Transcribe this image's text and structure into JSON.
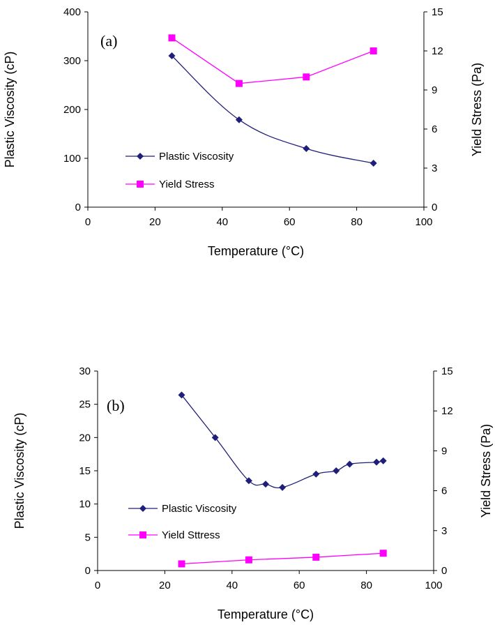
{
  "colors": {
    "viscosity": "#1f1f7a",
    "yield": "#ff00ff",
    "axis": "#000000"
  },
  "chart_data": [
    {
      "type": "line",
      "panel_label": "(a)",
      "xlabel": "Temperature (°C)",
      "ylabel": "Plastic Viscosity (cP)",
      "y2label": "Yield Stress (Pa)",
      "xlim": [
        0,
        100
      ],
      "ylim": [
        0,
        400
      ],
      "y2lim": [
        0,
        15
      ],
      "xticks": [
        0,
        20,
        40,
        60,
        80,
        100
      ],
      "yticks": [
        0,
        100,
        200,
        300,
        400
      ],
      "y2ticks": [
        0,
        3,
        6,
        9,
        12,
        15
      ],
      "grid": false,
      "legend_position": "lower-left",
      "series": [
        {
          "name": "Plastic Viscosity",
          "axis": "left",
          "marker": "diamond",
          "color": "#1f1f7a",
          "smooth": true,
          "x": [
            25,
            45,
            65,
            85
          ],
          "y": [
            310,
            179,
            120,
            90
          ]
        },
        {
          "name": "Yield Stress",
          "axis": "right",
          "marker": "square",
          "color": "#ff00ff",
          "smooth": false,
          "x": [
            25,
            45,
            65,
            85
          ],
          "y": [
            13.0,
            9.5,
            10.0,
            12.0
          ]
        }
      ]
    },
    {
      "type": "line",
      "panel_label": "(b)",
      "xlabel": "Temperature (°C)",
      "ylabel": "Plastic Viscosity (cP)",
      "y2label": "Yield Stress (Pa)",
      "xlim": [
        0,
        100
      ],
      "ylim": [
        0,
        30
      ],
      "y2lim": [
        0,
        15
      ],
      "xticks": [
        0,
        20,
        40,
        60,
        80,
        100
      ],
      "yticks": [
        0,
        5,
        10,
        15,
        20,
        25,
        30
      ],
      "y2ticks": [
        0,
        3,
        6,
        9,
        12,
        15
      ],
      "grid": false,
      "legend_position": "lower-left",
      "series": [
        {
          "name": "Plastic Viscosity",
          "axis": "left",
          "marker": "diamond",
          "color": "#1f1f7a",
          "smooth": true,
          "x": [
            25,
            35,
            45,
            50,
            55,
            65,
            71,
            75,
            83,
            85
          ],
          "y": [
            26.4,
            20.0,
            13.5,
            13.0,
            12.5,
            14.5,
            15.0,
            16.0,
            16.3,
            16.5
          ]
        },
        {
          "name": "Yield Sttress",
          "axis": "right",
          "marker": "square",
          "color": "#ff00ff",
          "smooth": false,
          "x": [
            25,
            45,
            65,
            85
          ],
          "y": [
            0.5,
            0.8,
            1.0,
            1.3
          ]
        }
      ]
    }
  ]
}
